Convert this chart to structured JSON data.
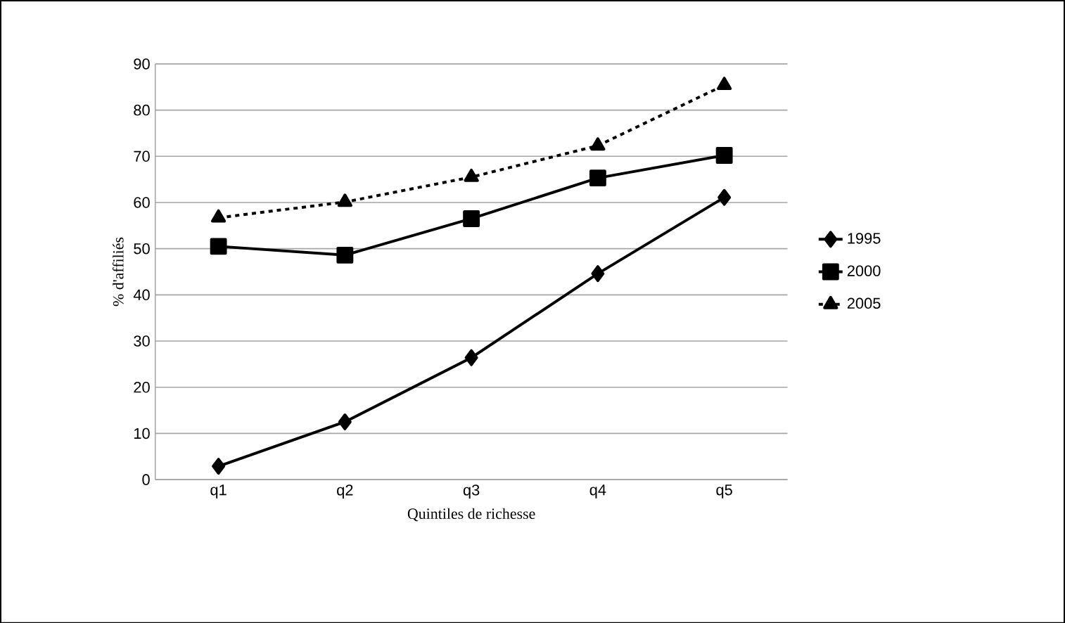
{
  "chart_data": {
    "type": "line",
    "xlabel": "Quintiles de richesse",
    "ylabel": "% d'affiliés",
    "categories": [
      "q1",
      "q2",
      "q3",
      "q4",
      "q5"
    ],
    "series": [
      {
        "name": "1995",
        "color": "#000000",
        "marker": "diamond",
        "line_style": "solid",
        "values": [
          2.9,
          12.5,
          26.4,
          44.6,
          61.1
        ]
      },
      {
        "name": "2000",
        "color": "#000000",
        "marker": "square",
        "line_style": "solid",
        "values": [
          50.5,
          48.6,
          56.5,
          65.3,
          70.2
        ]
      },
      {
        "name": "2005",
        "color": "#000000",
        "marker": "triangle",
        "line_style": "dashed",
        "values": [
          56.7,
          60.1,
          65.5,
          72.3,
          85.4
        ]
      }
    ],
    "ylim": [
      0,
      90
    ],
    "yticks": [
      0,
      10,
      20,
      30,
      40,
      50,
      60,
      70,
      80,
      90
    ],
    "grid": "y",
    "legend": "right"
  }
}
